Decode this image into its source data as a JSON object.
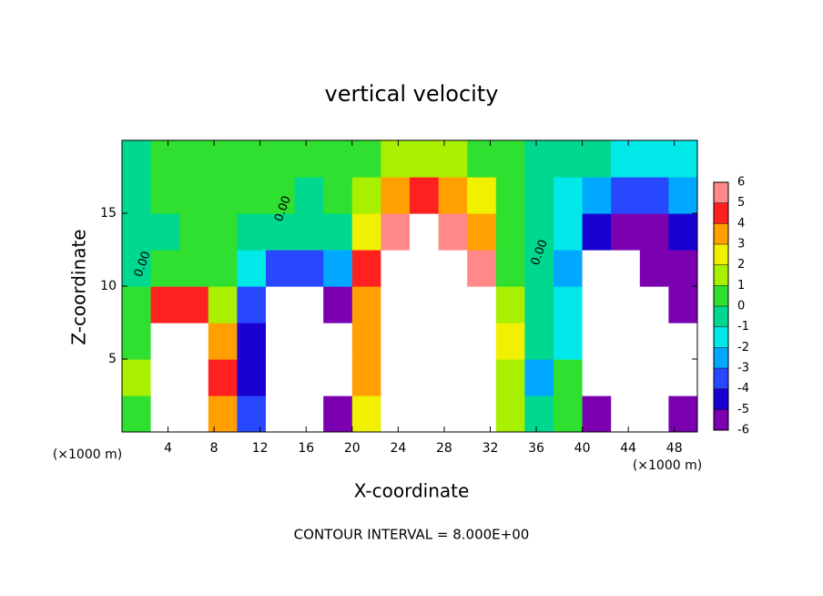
{
  "chart_data": {
    "type": "heatmap",
    "title": "vertical velocity",
    "x_label": "X-coordinate",
    "y_label": "Z-coordinate",
    "x_unit": "(×1000 m)",
    "footer": "CONTOUR INTERVAL = 8.000E+00",
    "xlim": [
      0,
      50
    ],
    "ylim": [
      0,
      20
    ],
    "xticks": [
      4,
      8,
      12,
      16,
      20,
      24,
      28,
      32,
      36,
      40,
      44,
      48
    ],
    "yticks": [
      5,
      10,
      15
    ],
    "x": [
      1.25,
      3.75,
      6.25,
      8.75,
      11.25,
      13.75,
      16.25,
      18.75,
      21.25,
      23.75,
      26.25,
      28.75,
      31.25,
      33.75,
      36.25,
      38.75,
      41.25,
      43.75,
      46.25,
      48.75
    ],
    "z": [
      1.25,
      3.75,
      6.25,
      8.75,
      11.25,
      13.75,
      16.25,
      18.75
    ],
    "values": [
      [
        1,
        9,
        9,
        4,
        -3,
        -9,
        -9,
        -6,
        3,
        9,
        9,
        9,
        8,
        2,
        0,
        1,
        -6,
        -9,
        -7,
        -5
      ],
      [
        2,
        9,
        9,
        5,
        -4,
        -9,
        -9,
        -9,
        4,
        9,
        9,
        9,
        9,
        2,
        -2,
        1,
        -8,
        -9,
        -9,
        -8
      ],
      [
        1,
        9,
        9,
        4,
        -4,
        -9,
        -9,
        -8,
        4,
        9,
        9,
        9,
        9,
        3,
        0,
        -1,
        -9,
        -9,
        -8,
        -9
      ],
      [
        1,
        5,
        5,
        2,
        -3,
        -7,
        -9,
        -6,
        4,
        9,
        9,
        9,
        8,
        2,
        0,
        -1,
        -9,
        -9,
        -7,
        -5
      ],
      [
        0,
        1,
        1,
        1,
        -1,
        -3,
        -3,
        -2,
        5,
        9,
        9,
        7,
        6,
        1,
        0,
        -2,
        -8,
        -7,
        -6,
        -5
      ],
      [
        0,
        0,
        1,
        1,
        0,
        0,
        0,
        0,
        3,
        6,
        7,
        6,
        4,
        1,
        0,
        -1,
        -4,
        -5,
        -5,
        -4
      ],
      [
        0,
        1,
        1,
        1,
        1,
        1,
        0,
        1,
        2,
        4,
        5,
        4,
        3,
        1,
        0,
        -1,
        -2,
        -3,
        -3,
        -2
      ],
      [
        0,
        1,
        1,
        1,
        1,
        1,
        1,
        1,
        1,
        2,
        2,
        2,
        1,
        1,
        0,
        0,
        0,
        -1,
        -1,
        -1
      ]
    ],
    "colorbar": {
      "levels": [
        -6,
        -5,
        -4,
        -3,
        -2,
        -1,
        0,
        1,
        2,
        3,
        4,
        5,
        6
      ],
      "colors": [
        "#7a00b0",
        "#1a00d0",
        "#2848ff",
        "#00a8ff",
        "#00e8e8",
        "#00d890",
        "#30e030",
        "#a8f000",
        "#f0f000",
        "#ffa000",
        "#ff2020",
        "#ff8888"
      ]
    },
    "contour_labels": [
      {
        "text": "0.00",
        "x": 1.8,
        "z": 11.5
      },
      {
        "text": "0.00",
        "x": 14,
        "z": 15.3
      },
      {
        "text": "0.00",
        "x": 36.3,
        "z": 12.3
      }
    ]
  }
}
